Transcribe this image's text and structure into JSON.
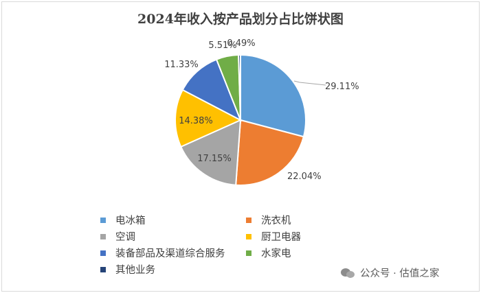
{
  "chart_data": {
    "type": "pie",
    "title": "2024年收入按产品划分占比饼状图",
    "categories": [
      "电冰箱",
      "洗衣机",
      "空调",
      "厨卫电器",
      "装备部品及渠道综合服务",
      "水家电",
      "其他业务"
    ],
    "values": [
      29.11,
      22.04,
      17.15,
      14.38,
      11.33,
      5.51,
      0.49
    ],
    "data_labels": [
      "29.11%",
      "22.04%",
      "17.15%",
      "14.38%",
      "11.33%",
      "5.51%",
      "0.49%"
    ],
    "colors": [
      "#5b9bd5",
      "#ed7d31",
      "#a5a5a5",
      "#ffc000",
      "#4472c4",
      "#70ad47",
      "#264478"
    ],
    "legend_position": "bottom",
    "start_angle": "12 o'clock",
    "direction": "clockwise"
  },
  "watermark": {
    "text": "公众号 · 估值之家",
    "icon": "wechat-icon"
  }
}
